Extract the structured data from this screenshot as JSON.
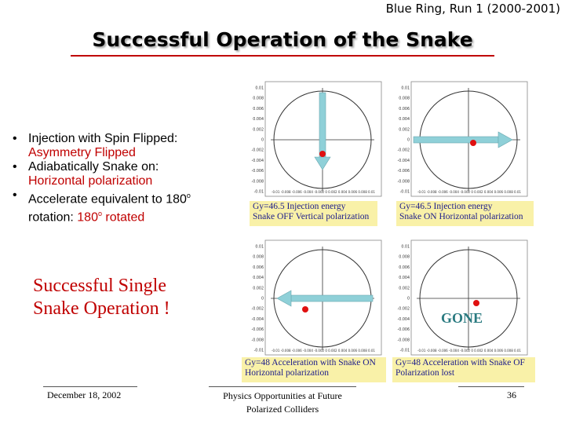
{
  "header": {
    "run_label": "Blue Ring, Run 1 (2000-2001)",
    "title": "Successful Operation of the Snake"
  },
  "bullets": [
    {
      "main": "Injection with Spin Flipped:",
      "sub": "Asymmetry Flipped"
    },
    {
      "main": "Adiabatically Snake on:",
      "sub": "Horizontal polarization"
    },
    {
      "main": "Accelerate equivalent to 180",
      "sup": "o",
      "main2": " rotation: ",
      "sub": "180",
      "sub_sup": "o",
      "sub2": " rotated"
    }
  ],
  "conclusion": {
    "line1": "Successful Single",
    "line2": "Snake Operation !"
  },
  "panels": [
    {
      "caption1": "Gy=46.5 Injection energy",
      "caption2": "Snake OFF Vertical polarization"
    },
    {
      "caption1": "Gy=46.5 Injection energy",
      "caption2": "Snake ON Horizontal polarization"
    },
    {
      "caption1": "Gy=48 Acceleration with Snake ON",
      "caption2": "Horizontal polarization"
    },
    {
      "caption1": "Gy=48 Acceleration with Snake OF",
      "caption2": "Polarization lost",
      "note": "GONE"
    }
  ],
  "y_ticks": [
    "0.01",
    "0.008",
    "0.006",
    "0.004",
    "0.002",
    "0",
    "-0.002",
    "-0.004",
    "-0.006",
    "-0.008",
    "-0.01"
  ],
  "x_ticks": "-0.01 -0.008 -0.006 -0.004 -0.002 0 0.002 0.004 0.006 0.008 0.01",
  "footer": {
    "date": "December 18, 2002",
    "center_line1": "Physics Opportunities at Future",
    "center_line2": "Polarized Colliders",
    "page": "36"
  },
  "colors": {
    "accent": "#c00000",
    "caption_bg": "#f9f1a8",
    "arrow": "#8fd0d8",
    "point": "#e01010"
  }
}
